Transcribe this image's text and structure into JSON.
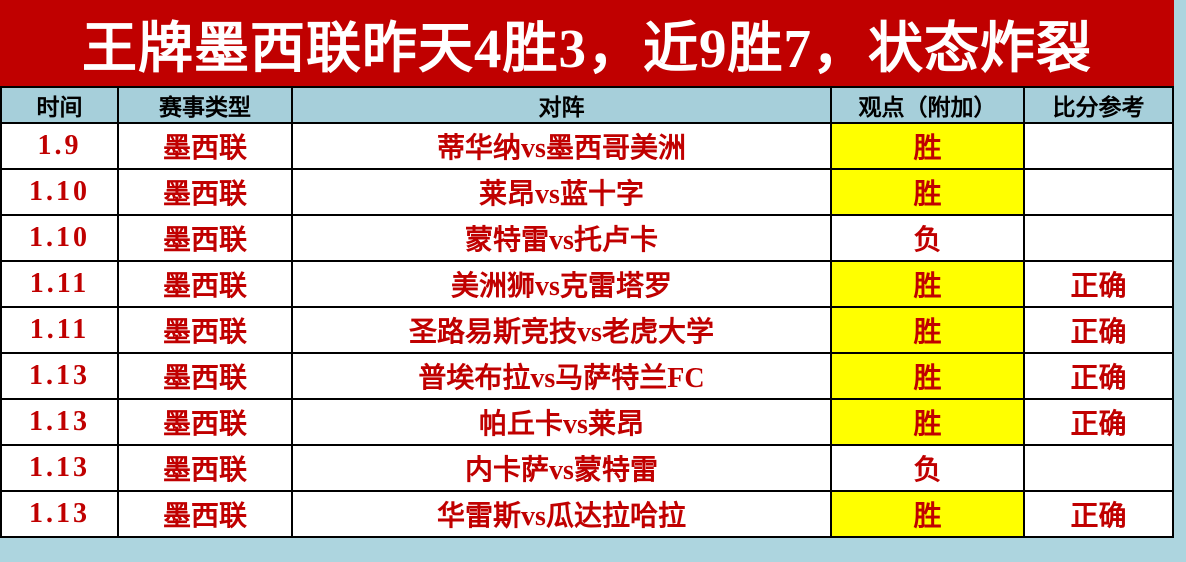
{
  "title": {
    "text": "王牌墨西联昨天4胜3，近9胜7，状态炸裂"
  },
  "colors": {
    "accent_red": "#C00000",
    "highlight_yellow": "#FFFF00",
    "header_blue": "#A6CFDA",
    "page_bg": "#ADD5DF",
    "banner_text": "#FFFFFF",
    "grid_line": "#000000"
  },
  "table": {
    "columns": [
      {
        "key": "date",
        "label": "时间"
      },
      {
        "key": "league",
        "label": "赛事类型"
      },
      {
        "key": "match",
        "label": "对阵"
      },
      {
        "key": "pick",
        "label": "观点（附加）"
      },
      {
        "key": "result",
        "label": "比分参考"
      }
    ],
    "rows": [
      {
        "date": "1.9",
        "league": "墨西联",
        "match": "蒂华纳vs墨西哥美洲",
        "pick": "胜",
        "pick_highlight": true,
        "result": ""
      },
      {
        "date": "1.10",
        "league": "墨西联",
        "match": "莱昂vs蓝十字",
        "pick": "胜",
        "pick_highlight": true,
        "result": ""
      },
      {
        "date": "1.10",
        "league": "墨西联",
        "match": "蒙特雷vs托卢卡",
        "pick": "负",
        "pick_highlight": false,
        "result": ""
      },
      {
        "date": "1.11",
        "league": "墨西联",
        "match": "美洲狮vs克雷塔罗",
        "pick": "胜",
        "pick_highlight": true,
        "result": "正确"
      },
      {
        "date": "1.11",
        "league": "墨西联",
        "match": "圣路易斯竞技vs老虎大学",
        "pick": "胜",
        "pick_highlight": true,
        "result": "正确"
      },
      {
        "date": "1.13",
        "league": "墨西联",
        "match": "普埃布拉vs马萨特兰FC",
        "pick": "胜",
        "pick_highlight": true,
        "result": "正确"
      },
      {
        "date": "1.13",
        "league": "墨西联",
        "match": "帕丘卡vs莱昂",
        "pick": "胜",
        "pick_highlight": true,
        "result": "正确"
      },
      {
        "date": "1.13",
        "league": "墨西联",
        "match": "内卡萨vs蒙特雷",
        "pick": "负",
        "pick_highlight": false,
        "result": ""
      },
      {
        "date": "1.13",
        "league": "墨西联",
        "match": "华雷斯vs瓜达拉哈拉",
        "pick": "胜",
        "pick_highlight": true,
        "result": "正确"
      }
    ]
  }
}
